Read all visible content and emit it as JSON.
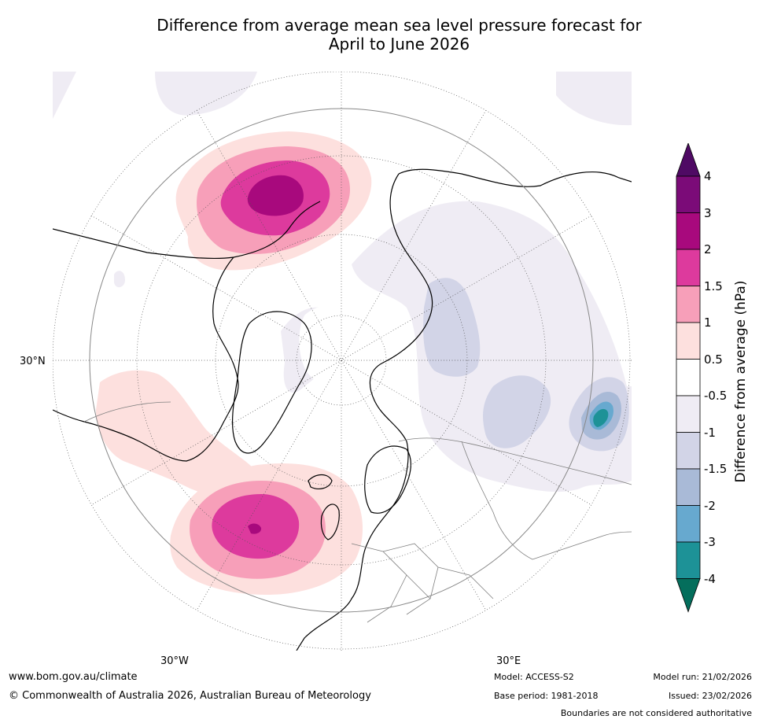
{
  "title": {
    "line1": "Difference from average mean sea level pressure forecast for",
    "line2": "April to June 2026"
  },
  "map": {
    "projection": "north-polar-stereographic",
    "lat_label": "30°N",
    "lon_labels": {
      "west": "30°W",
      "east": "30°E"
    },
    "anomalies": [
      {
        "region": "Gulf of Alaska",
        "max_hpa": 3,
        "sign": "positive"
      },
      {
        "region": "North Atlantic",
        "max_hpa": 3,
        "sign": "positive"
      },
      {
        "region": "Eastern North Pacific",
        "max_hpa": 1,
        "sign": "positive"
      },
      {
        "region": "Western Siberia",
        "min_hpa": -1.5,
        "sign": "negative"
      },
      {
        "region": "Central Asia / Himalaya",
        "min_hpa": -3,
        "sign": "negative"
      }
    ]
  },
  "colorbar": {
    "title": "Difference from average (hPa)",
    "ticks": [
      "4",
      "3",
      "2",
      "1.5",
      "1",
      "0.5",
      "-0.5",
      "-1",
      "-1.5",
      "-2",
      "-3",
      "-4"
    ],
    "colors": {
      "above_4": "#4f0a64",
      "3_to_4": "#7b0b78",
      "2_to_3": "#a8097d",
      "1.5_to_2": "#dd3a9d",
      "1_to_1.5": "#f79fb9",
      "0.5_to_1": "#fde0de",
      "neutral": "#ffffff",
      "-1_to_-0.5": "#efecf4",
      "-1.5_to_-1": "#d2d4e7",
      "-2_to_-1.5": "#a9bad7",
      "-3_to_-2": "#67a9cf",
      "-4_to_-3": "#1d9297",
      "below_-4": "#046e5c"
    }
  },
  "footer": {
    "website": "www.bom.gov.au/climate",
    "copyright": "© Commonwealth of Australia 2026, Australian Bureau of Meteorology",
    "model": "Model: ACCESS-S2",
    "base_period": "Base period: 1981-2018",
    "model_run": "Model run: 21/02/2026",
    "issued": "Issued: 23/02/2026",
    "disclaimer": "Boundaries are not considered authoritative"
  }
}
